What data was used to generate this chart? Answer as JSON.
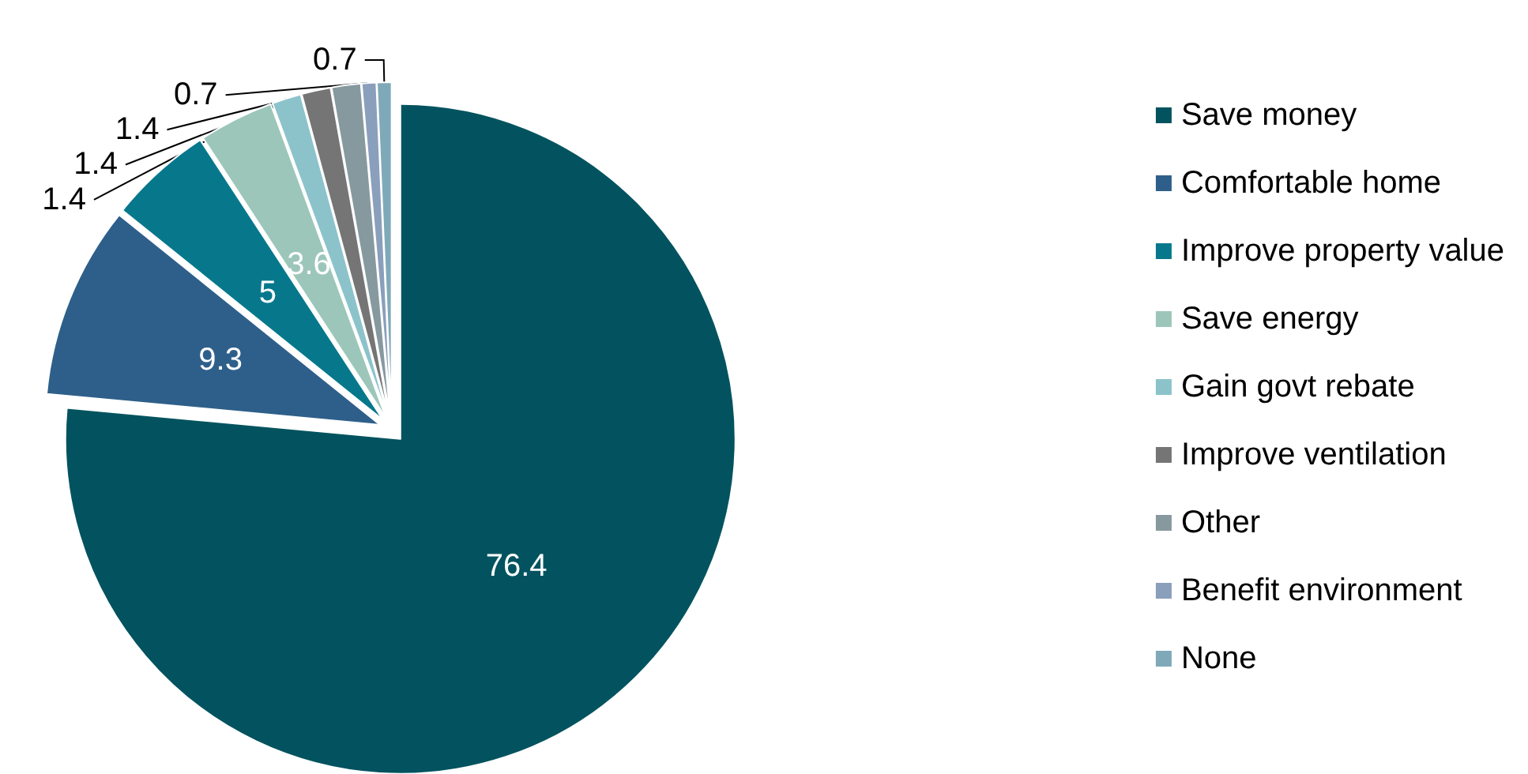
{
  "chart_data": {
    "type": "pie",
    "categories": [
      "Save money",
      "Comfortable home",
      "Improve property value",
      "Save energy",
      "Gain govt rebate",
      "Improve ventilation",
      "Other",
      "Benefit environment",
      "None"
    ],
    "values": [
      76.4,
      9.3,
      5,
      3.6,
      1.4,
      1.4,
      1.4,
      0.7,
      0.7
    ],
    "colors": [
      "#02535f",
      "#2e5f8a",
      "#07788c",
      "#9dc6ba",
      "#8cc3cb",
      "#757575",
      "#86999f",
      "#8a9fbb",
      "#7fa9b8"
    ],
    "data_labels": true,
    "legend": "right"
  }
}
